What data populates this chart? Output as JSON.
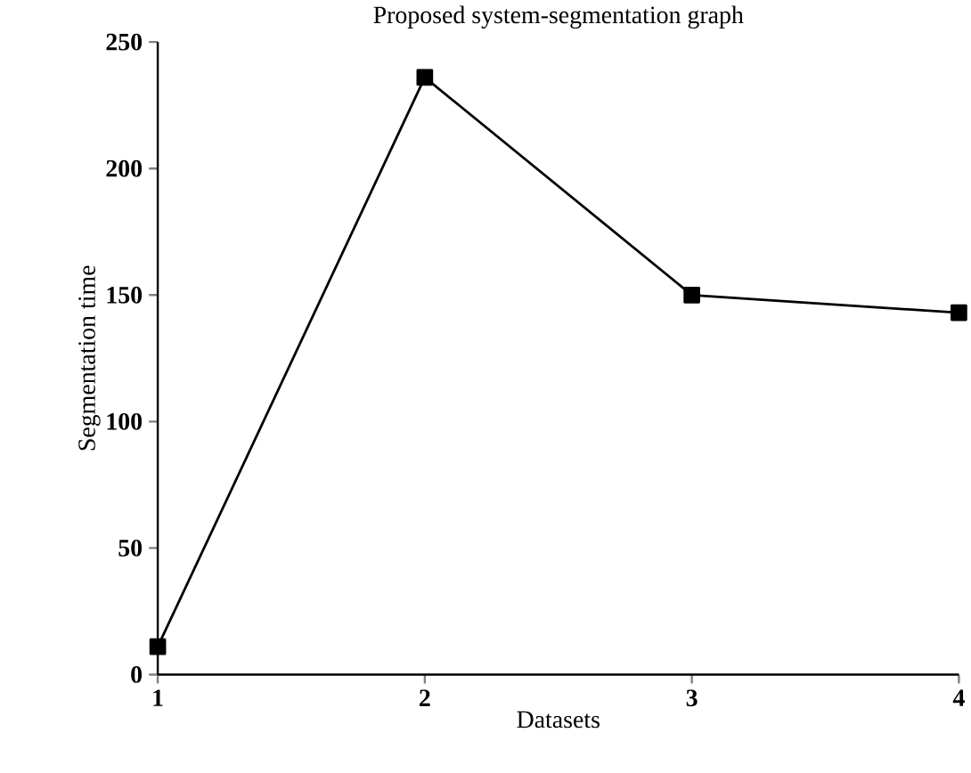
{
  "chart_data": {
    "type": "line",
    "title": "Proposed system-segmentation graph",
    "xlabel": "Datasets",
    "ylabel": "Segmentation time",
    "x": [
      1,
      2,
      3,
      4
    ],
    "series": [
      {
        "color": "#000000",
        "values": [
          11,
          236,
          150,
          143
        ]
      }
    ],
    "xlim": [
      1,
      4
    ],
    "xticks": [
      1,
      2,
      3,
      4
    ],
    "ylim": [
      0,
      250
    ],
    "yticks": [
      0,
      50,
      100,
      150,
      200,
      250
    ],
    "marker": "square",
    "line_style": "solid",
    "grid": false
  }
}
